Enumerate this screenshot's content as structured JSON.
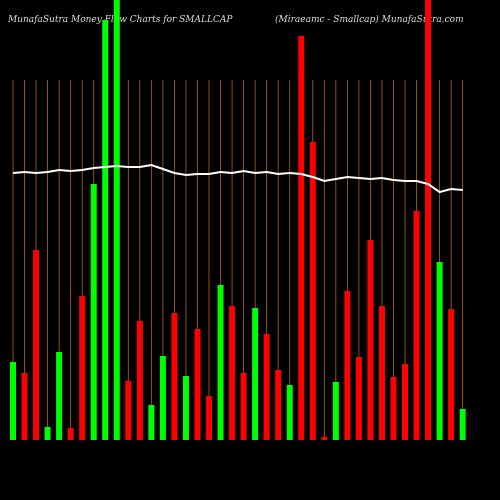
{
  "chart_data": {
    "type": "bar",
    "title": "MunafaSutra  Money Flow Charts for SMALLCAP",
    "subtitle": "(Miraeamc -  Smallcap) MunafaSutra.com",
    "grid": true,
    "categories": [
      null,
      null,
      null,
      null,
      null,
      null,
      null,
      null,
      null,
      null,
      null,
      null,
      null,
      null,
      null,
      null,
      null,
      null,
      null,
      null,
      null,
      null,
      null,
      null,
      null,
      null,
      null,
      null,
      null,
      null,
      null,
      null,
      null,
      null,
      null,
      null,
      null,
      null,
      null,
      null
    ],
    "values": [
      78,
      67,
      190,
      13,
      88,
      12,
      144,
      256,
      420,
      445,
      59,
      119,
      35,
      84,
      127,
      64,
      111,
      44,
      155,
      134,
      67,
      132,
      106,
      70,
      55,
      404,
      298,
      3,
      58,
      149,
      83,
      200,
      134,
      63,
      76,
      229,
      445,
      178,
      131,
      31
    ],
    "colors": [
      "#00ff00",
      "#ff0000",
      "#ff0000",
      "#00ff00",
      "#00ff00",
      "#ff0000",
      "#ff0000",
      "#00ff00",
      "#00ff00",
      "#00ff00",
      "#ff0000",
      "#ff0000",
      "#00ff00",
      "#00ff00",
      "#ff0000",
      "#00ff00",
      "#ff0000",
      "#ff0000",
      "#00ff00",
      "#ff0000",
      "#ff0000",
      "#00ff00",
      "#ff0000",
      "#ff0000",
      "#00ff00",
      "#ff0000",
      "#ff0000",
      "#ff0000",
      "#00ff00",
      "#ff0000",
      "#ff0000",
      "#ff0000",
      "#ff0000",
      "#ff0000",
      "#ff0000",
      "#ff0000",
      "#ff0000",
      "#00ff00",
      "#ff0000",
      "#00ff00"
    ],
    "line": {
      "color": "#ffffff",
      "values": [
        267,
        268,
        267,
        268,
        270,
        269,
        270,
        272,
        273,
        274,
        273,
        273,
        275,
        271,
        267,
        265,
        266,
        266,
        268,
        267,
        269,
        267,
        268,
        266,
        267,
        266,
        263,
        259,
        261,
        263,
        262,
        261,
        262,
        260,
        259,
        259,
        256,
        248,
        251,
        250
      ]
    }
  }
}
